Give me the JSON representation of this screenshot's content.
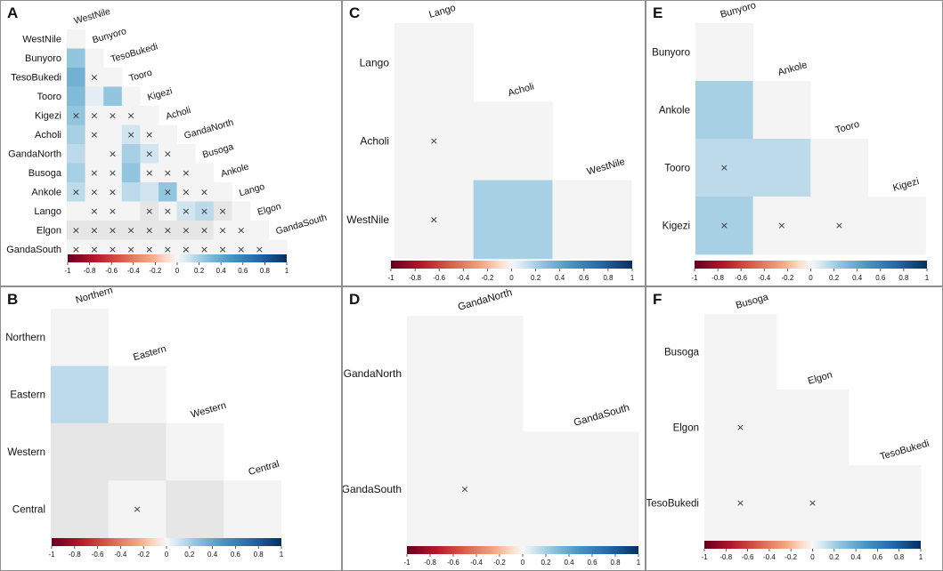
{
  "chart_data": [
    {
      "panel": "A",
      "type": "heatmap",
      "subtype": "lower-triangular correlation matrix",
      "labels": [
        "WestNile",
        "Bunyoro",
        "TesoBukedi",
        "Tooro",
        "Kigezi",
        "Acholi",
        "GandaNorth",
        "Busoga",
        "Ankole",
        "Lango",
        "Elgon",
        "GandaSouth"
      ],
      "matrix": [
        [
          0
        ],
        [
          0.25,
          0
        ],
        [
          0.35,
          0.0,
          0
        ],
        [
          0.3,
          0.05,
          0.25,
          0
        ],
        [
          0.25,
          0.0,
          0.0,
          0.0,
          0
        ],
        [
          0.2,
          0.0,
          0.0,
          0.1,
          0.0,
          0
        ],
        [
          0.15,
          0.0,
          0.0,
          0.2,
          0.1,
          0.0,
          0
        ],
        [
          0.2,
          0.0,
          0.0,
          0.25,
          0.0,
          0.0,
          0.0,
          0
        ],
        [
          0.15,
          0.0,
          0.0,
          0.15,
          0.1,
          0.25,
          0.0,
          0.0,
          0
        ],
        [
          0.0,
          0.0,
          0.0,
          0.0,
          -0.05,
          0.0,
          0.1,
          0.15,
          -0.05,
          0
        ],
        [
          -0.05,
          -0.05,
          -0.05,
          -0.05,
          -0.05,
          -0.05,
          -0.05,
          -0.05,
          0.0,
          0.0,
          0
        ],
        [
          0.0,
          0.0,
          0.0,
          0.0,
          0.0,
          0.0,
          0.0,
          0.0,
          0.0,
          0.0,
          0.0,
          0
        ]
      ],
      "nonsignificant": [
        [
          4,
          0
        ],
        [
          4,
          1
        ],
        [
          4,
          2
        ],
        [
          4,
          3
        ],
        [
          2,
          1
        ],
        [
          5,
          1
        ],
        [
          5,
          3
        ],
        [
          5,
          4
        ],
        [
          6,
          2
        ],
        [
          6,
          4
        ],
        [
          6,
          5
        ],
        [
          7,
          1
        ],
        [
          7,
          2
        ],
        [
          7,
          4
        ],
        [
          7,
          5
        ],
        [
          7,
          6
        ],
        [
          8,
          0
        ],
        [
          8,
          1
        ],
        [
          8,
          2
        ],
        [
          8,
          5
        ],
        [
          8,
          6
        ],
        [
          8,
          7
        ],
        [
          9,
          1
        ],
        [
          9,
          2
        ],
        [
          9,
          4
        ],
        [
          9,
          5
        ],
        [
          9,
          6
        ],
        [
          9,
          7
        ],
        [
          9,
          8
        ],
        [
          10,
          0
        ],
        [
          10,
          1
        ],
        [
          10,
          2
        ],
        [
          10,
          3
        ],
        [
          10,
          4
        ],
        [
          10,
          5
        ],
        [
          10,
          6
        ],
        [
          10,
          7
        ],
        [
          10,
          8
        ],
        [
          10,
          9
        ],
        [
          11,
          0
        ],
        [
          11,
          1
        ],
        [
          11,
          2
        ],
        [
          11,
          3
        ],
        [
          11,
          4
        ],
        [
          11,
          5
        ],
        [
          11,
          6
        ],
        [
          11,
          7
        ],
        [
          11,
          8
        ],
        [
          11,
          9
        ],
        [
          11,
          10
        ]
      ],
      "colorbar": {
        "min": -1,
        "max": 1,
        "ticks": [
          "-1",
          "-0.8",
          "-0.6",
          "-0.4",
          "-0.2",
          "0",
          "0.2",
          "0.4",
          "0.6",
          "0.8",
          "1"
        ]
      }
    },
    {
      "panel": "B",
      "type": "heatmap",
      "subtype": "lower-triangular correlation matrix",
      "labels": [
        "Northern",
        "Eastern",
        "Western",
        "Central"
      ],
      "matrix": [
        [
          0
        ],
        [
          0.15,
          0
        ],
        [
          -0.05,
          -0.05,
          0
        ],
        [
          -0.05,
          0.0,
          -0.05,
          0
        ]
      ],
      "nonsignificant": [
        [
          3,
          1
        ]
      ],
      "colorbar": {
        "min": -1,
        "max": 1,
        "ticks": [
          "-1",
          "-0.8",
          "-0.6",
          "-0.4",
          "-0.2",
          "0",
          "0.2",
          "0.4",
          "0.6",
          "0.8",
          "1"
        ]
      }
    },
    {
      "panel": "C",
      "type": "heatmap",
      "subtype": "lower-triangular correlation matrix",
      "labels": [
        "Lango",
        "Acholi",
        "WestNile"
      ],
      "matrix": [
        [
          0
        ],
        [
          0.0,
          0
        ],
        [
          0.0,
          0.2,
          0
        ]
      ],
      "nonsignificant": [
        [
          1,
          0
        ],
        [
          2,
          0
        ]
      ],
      "colorbar": {
        "min": -1,
        "max": 1,
        "ticks": [
          "-1",
          "-0.8",
          "-0.6",
          "-0.4",
          "-0.2",
          "0",
          "0.2",
          "0.4",
          "0.6",
          "0.8",
          "1"
        ]
      }
    },
    {
      "panel": "D",
      "type": "heatmap",
      "subtype": "lower-triangular correlation matrix",
      "labels": [
        "GandaNorth",
        "GandaSouth"
      ],
      "matrix": [
        [
          0
        ],
        [
          0.0,
          0
        ]
      ],
      "nonsignificant": [
        [
          1,
          0
        ]
      ],
      "colorbar": {
        "min": -1,
        "max": 1,
        "ticks": [
          "-1",
          "-0.8",
          "-0.6",
          "-0.4",
          "-0.2",
          "0",
          "0.2",
          "0.4",
          "0.6",
          "0.8",
          "1"
        ]
      }
    },
    {
      "panel": "E",
      "type": "heatmap",
      "subtype": "lower-triangular correlation matrix",
      "labels": [
        "Bunyoro",
        "Ankole",
        "Tooro",
        "Kigezi"
      ],
      "matrix": [
        [
          0
        ],
        [
          0.2,
          0
        ],
        [
          0.15,
          0.15,
          0
        ],
        [
          0.2,
          0.0,
          0.0,
          0
        ]
      ],
      "nonsignificant": [
        [
          2,
          0
        ],
        [
          3,
          0
        ],
        [
          3,
          1
        ],
        [
          3,
          2
        ]
      ],
      "colorbar": {
        "min": -1,
        "max": 1,
        "ticks": [
          "-1",
          "-0.8",
          "-0.6",
          "-0.4",
          "-0.2",
          "0",
          "0.2",
          "0.4",
          "0.6",
          "0.8",
          "1"
        ]
      }
    },
    {
      "panel": "F",
      "type": "heatmap",
      "subtype": "lower-triangular correlation matrix",
      "labels": [
        "Busoga",
        "Elgon",
        "TesoBukedi"
      ],
      "matrix": [
        [
          0
        ],
        [
          0.0,
          0
        ],
        [
          0.0,
          0.0,
          0
        ]
      ],
      "nonsignificant": [
        [
          1,
          0
        ],
        [
          2,
          0
        ],
        [
          2,
          1
        ]
      ],
      "colorbar": {
        "min": -1,
        "max": 1,
        "ticks": [
          "-1",
          "-0.8",
          "-0.6",
          "-0.4",
          "-0.2",
          "0",
          "0.2",
          "0.4",
          "0.6",
          "0.8",
          "1"
        ]
      }
    }
  ],
  "colors": {
    "negative": "#67001f",
    "zero": "#f7f7f7",
    "positive": "#053061",
    "marker": "#333333"
  },
  "marker_symbol": "×"
}
